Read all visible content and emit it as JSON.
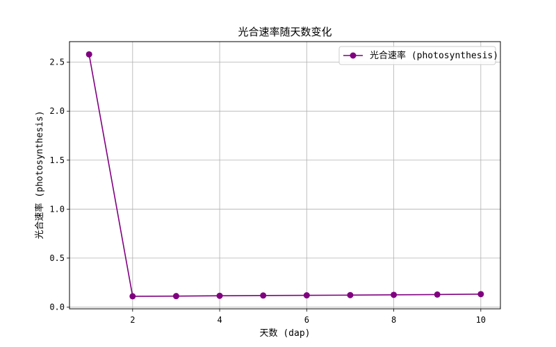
{
  "chart_data": {
    "type": "line",
    "title": "光合速率随天数变化",
    "xlabel": "天数 (dap)",
    "ylabel": "光合速率 (photosynthesis)",
    "x": [
      1,
      2,
      3,
      4,
      5,
      6,
      7,
      8,
      9,
      10
    ],
    "series": [
      {
        "name": "光合速率 (photosynthesis)",
        "values": [
          2.58,
          0.11,
          0.112,
          0.115,
          0.118,
          0.12,
          0.122,
          0.125,
          0.128,
          0.132
        ],
        "color": "#800080",
        "marker": "circle"
      }
    ],
    "xlim": [
      0.55,
      10.45
    ],
    "ylim": [
      -0.018,
      2.71
    ],
    "xticks": [
      2,
      4,
      6,
      8,
      10
    ],
    "yticks": [
      0.0,
      0.5,
      1.0,
      1.5,
      2.0,
      2.5
    ],
    "xtick_labels": [
      "2",
      "4",
      "6",
      "8",
      "10"
    ],
    "ytick_labels": [
      "0.0",
      "0.5",
      "1.0",
      "1.5",
      "2.0",
      "2.5"
    ],
    "grid": true,
    "legend_position": "upper right"
  }
}
